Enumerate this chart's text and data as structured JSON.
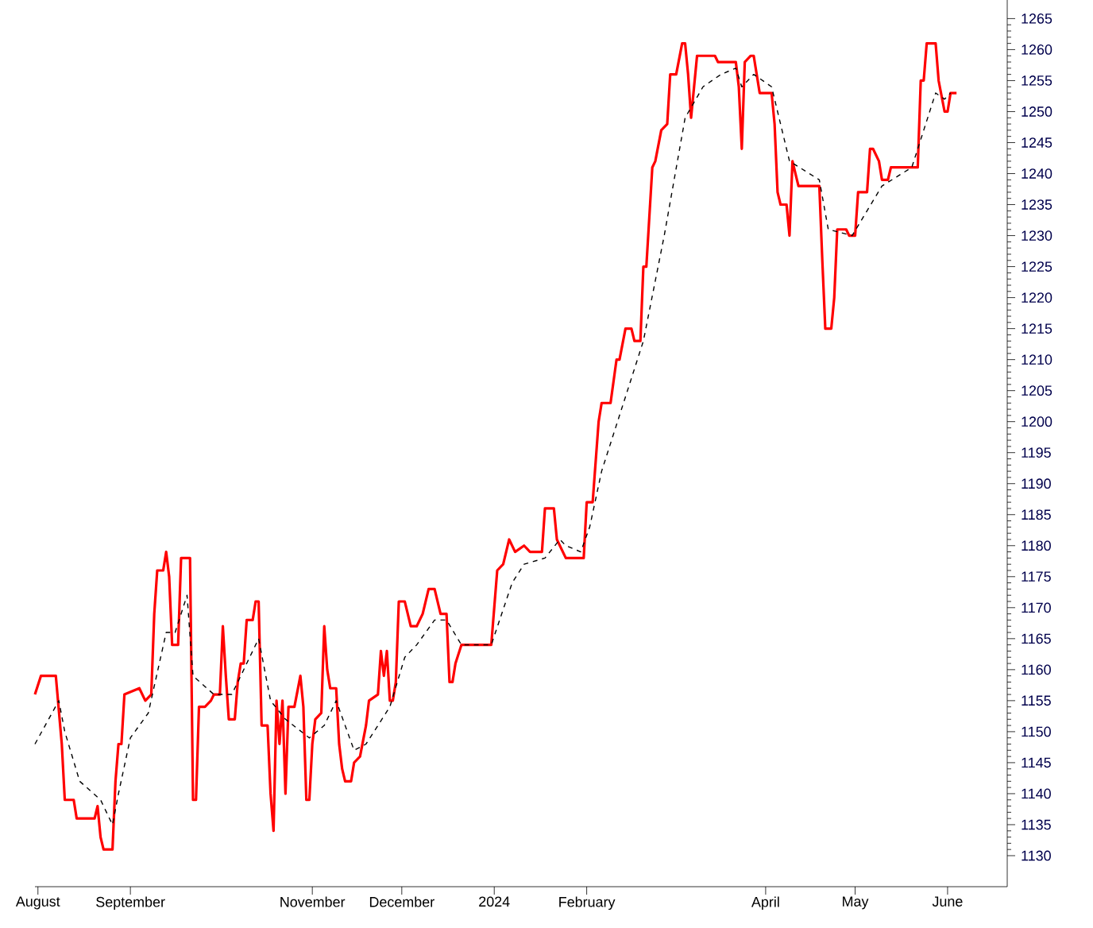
{
  "chart_data": {
    "type": "line",
    "marker": "none",
    "grid": false,
    "xlim": [
      "2023-07-31",
      "2024-06-21"
    ],
    "ylim": [
      1125,
      1268
    ],
    "xticks": [
      {
        "value": "2023-08-01",
        "label": "August"
      },
      {
        "value": "2023-09-01",
        "label": "September"
      },
      {
        "value": "2023-11-01",
        "label": "November"
      },
      {
        "value": "2023-12-01",
        "label": "December"
      },
      {
        "value": "2024-01-01",
        "label": "2024"
      },
      {
        "value": "2024-02-01",
        "label": "February"
      },
      {
        "value": "2024-04-01",
        "label": "April"
      },
      {
        "value": "2024-05-01",
        "label": "May"
      },
      {
        "value": "2024-06-01",
        "label": "June"
      }
    ],
    "yticks": [
      1130,
      1135,
      1140,
      1145,
      1150,
      1155,
      1160,
      1165,
      1170,
      1175,
      1180,
      1185,
      1190,
      1195,
      1200,
      1205,
      1210,
      1215,
      1220,
      1225,
      1230,
      1235,
      1240,
      1245,
      1250,
      1255,
      1260,
      1265
    ],
    "series": [
      {
        "color": "#ff0000",
        "line_style": "solid",
        "x": [
          "2023-07-31",
          "2023-08-02",
          "2023-08-07",
          "2023-08-09",
          "2023-08-10",
          "2023-08-13",
          "2023-08-14",
          "2023-08-20",
          "2023-08-21",
          "2023-08-22",
          "2023-08-23",
          "2023-08-26",
          "2023-08-27",
          "2023-08-28",
          "2023-08-29",
          "2023-08-30",
          "2023-09-04",
          "2023-09-06",
          "2023-09-08",
          "2023-09-09",
          "2023-09-10",
          "2023-09-12",
          "2023-09-13",
          "2023-09-14",
          "2023-09-15",
          "2023-09-17",
          "2023-09-18",
          "2023-09-21",
          "2023-09-22",
          "2023-09-23",
          "2023-09-24",
          "2023-09-26",
          "2023-09-28",
          "2023-09-29",
          "2023-10-01",
          "2023-10-02",
          "2023-10-03",
          "2023-10-04",
          "2023-10-06",
          "2023-10-07",
          "2023-10-08",
          "2023-10-09",
          "2023-10-10",
          "2023-10-12",
          "2023-10-13",
          "2023-10-14",
          "2023-10-15",
          "2023-10-17",
          "2023-10-18",
          "2023-10-19",
          "2023-10-20",
          "2023-10-21",
          "2023-10-22",
          "2023-10-23",
          "2023-10-24",
          "2023-10-26",
          "2023-10-28",
          "2023-10-29",
          "2023-10-30",
          "2023-10-31",
          "2023-11-01",
          "2023-11-02",
          "2023-11-04",
          "2023-11-05",
          "2023-11-06",
          "2023-11-07",
          "2023-11-09",
          "2023-11-10",
          "2023-11-11",
          "2023-11-12",
          "2023-11-14",
          "2023-11-15",
          "2023-11-17",
          "2023-11-19",
          "2023-11-20",
          "2023-11-23",
          "2023-11-24",
          "2023-11-25",
          "2023-11-26",
          "2023-11-27",
          "2023-11-28",
          "2023-11-29",
          "2023-11-30",
          "2023-12-02",
          "2023-12-04",
          "2023-12-06",
          "2023-12-08",
          "2023-12-10",
          "2023-12-12",
          "2023-12-14",
          "2023-12-16",
          "2023-12-17",
          "2023-12-18",
          "2023-12-19",
          "2023-12-21",
          "2023-12-31",
          "2024-01-02",
          "2024-01-04",
          "2024-01-06",
          "2024-01-08",
          "2024-01-11",
          "2024-01-13",
          "2024-01-17",
          "2024-01-18",
          "2024-01-21",
          "2024-01-22",
          "2024-01-25",
          "2024-01-31",
          "2024-02-01",
          "2024-02-03",
          "2024-02-05",
          "2024-02-06",
          "2024-02-09",
          "2024-02-11",
          "2024-02-12",
          "2024-02-14",
          "2024-02-16",
          "2024-02-17",
          "2024-02-19",
          "2024-02-20",
          "2024-02-21",
          "2024-02-23",
          "2024-02-24",
          "2024-02-26",
          "2024-02-28",
          "2024-02-29",
          "2024-03-02",
          "2024-03-04",
          "2024-03-05",
          "2024-03-06",
          "2024-03-07",
          "2024-03-09",
          "2024-03-11",
          "2024-03-15",
          "2024-03-16",
          "2024-03-22",
          "2024-03-23",
          "2024-03-24",
          "2024-03-25",
          "2024-03-27",
          "2024-03-28",
          "2024-03-30",
          "2024-04-03",
          "2024-04-04",
          "2024-04-05",
          "2024-04-06",
          "2024-04-08",
          "2024-04-09",
          "2024-04-10",
          "2024-04-11",
          "2024-04-12",
          "2024-04-19",
          "2024-04-20",
          "2024-04-21",
          "2024-04-23",
          "2024-04-24",
          "2024-04-25",
          "2024-04-28",
          "2024-04-29",
          "2024-05-01",
          "2024-05-02",
          "2024-05-05",
          "2024-05-06",
          "2024-05-07",
          "2024-05-09",
          "2024-05-10",
          "2024-05-12",
          "2024-05-13",
          "2024-05-18",
          "2024-05-20",
          "2024-05-22",
          "2024-05-23",
          "2024-05-24",
          "2024-05-25",
          "2024-05-28",
          "2024-05-29",
          "2024-05-31",
          "2024-06-01",
          "2024-06-02",
          "2024-06-03",
          "2024-06-04"
        ],
        "values": [
          1156,
          1159,
          1159,
          1148,
          1139,
          1139,
          1136,
          1136,
          1138,
          1133,
          1131,
          1131,
          1142,
          1148,
          1148,
          1156,
          1157,
          1155,
          1156,
          1169,
          1176,
          1176,
          1179,
          1175,
          1164,
          1164,
          1178,
          1178,
          1139,
          1139,
          1154,
          1154,
          1155,
          1156,
          1156,
          1167,
          1159,
          1152,
          1152,
          1158,
          1161,
          1161,
          1168,
          1168,
          1171,
          1171,
          1151,
          1151,
          1140,
          1134,
          1155,
          1148,
          1155,
          1140,
          1154,
          1154,
          1159,
          1154,
          1139,
          1139,
          1148,
          1152,
          1153,
          1167,
          1160,
          1157,
          1157,
          1148,
          1144,
          1142,
          1142,
          1145,
          1146,
          1151,
          1155,
          1156,
          1163,
          1159,
          1163,
          1155,
          1155,
          1158,
          1171,
          1171,
          1167,
          1167,
          1169,
          1173,
          1173,
          1169,
          1169,
          1158,
          1158,
          1161,
          1164,
          1164,
          1176,
          1177,
          1181,
          1179,
          1180,
          1179,
          1179,
          1186,
          1186,
          1181,
          1178,
          1178,
          1187,
          1187,
          1200,
          1203,
          1203,
          1210,
          1210,
          1215,
          1215,
          1213,
          1213,
          1225,
          1225,
          1241,
          1242,
          1247,
          1248,
          1256,
          1256,
          1261,
          1261,
          1256,
          1249,
          1259,
          1259,
          1259,
          1258,
          1258,
          1254,
          1244,
          1258,
          1259,
          1259,
          1253,
          1253,
          1248,
          1237,
          1235,
          1235,
          1230,
          1242,
          1240,
          1238,
          1238,
          1226,
          1215,
          1215,
          1220,
          1231,
          1231,
          1230,
          1230,
          1237,
          1237,
          1244,
          1244,
          1242,
          1239,
          1239,
          1241,
          1241,
          1241,
          1241,
          1255,
          1255,
          1261,
          1261,
          1255,
          1250,
          1250,
          1253,
          1253,
          1253
        ]
      },
      {
        "color": "#000000",
        "line_style": "dashed",
        "x": [
          "2023-07-31",
          "2023-08-08",
          "2023-08-10",
          "2023-08-15",
          "2023-08-22",
          "2023-08-26",
          "2023-08-28",
          "2023-09-01",
          "2023-09-07",
          "2023-09-13",
          "2023-09-16",
          "2023-09-20",
          "2023-09-22",
          "2023-09-29",
          "2023-10-05",
          "2023-10-14",
          "2023-10-18",
          "2023-10-23",
          "2023-10-31",
          "2023-11-05",
          "2023-11-09",
          "2023-11-15",
          "2023-11-19",
          "2023-11-27",
          "2023-12-02",
          "2023-12-06",
          "2023-12-12",
          "2023-12-16",
          "2023-12-21",
          "2023-12-31",
          "2024-01-07",
          "2024-01-11",
          "2024-01-18",
          "2024-01-23",
          "2024-01-25",
          "2024-01-30",
          "2024-02-02",
          "2024-02-06",
          "2024-02-14",
          "2024-02-20",
          "2024-02-27",
          "2024-03-05",
          "2024-03-11",
          "2024-03-17",
          "2024-03-22",
          "2024-03-24",
          "2024-03-28",
          "2024-04-03",
          "2024-04-09",
          "2024-04-19",
          "2024-04-22",
          "2024-04-30",
          "2024-05-10",
          "2024-05-20",
          "2024-05-24",
          "2024-05-28",
          "2024-05-31",
          "2024-06-02"
        ],
        "values": [
          1148,
          1155,
          1150,
          1142,
          1139,
          1135,
          1140,
          1149,
          1153,
          1166,
          1166,
          1172,
          1159,
          1156,
          1156,
          1165,
          1155,
          1152,
          1149,
          1151,
          1155,
          1147,
          1148,
          1154,
          1162,
          1164,
          1168,
          1168,
          1164,
          1164,
          1174,
          1177,
          1178,
          1181,
          1180,
          1179,
          1183,
          1192,
          1204,
          1213,
          1230,
          1249,
          1254,
          1256,
          1257,
          1254,
          1256,
          1254,
          1242,
          1239,
          1231,
          1230,
          1238,
          1241,
          1247,
          1253,
          1252,
          1253
        ]
      }
    ]
  }
}
